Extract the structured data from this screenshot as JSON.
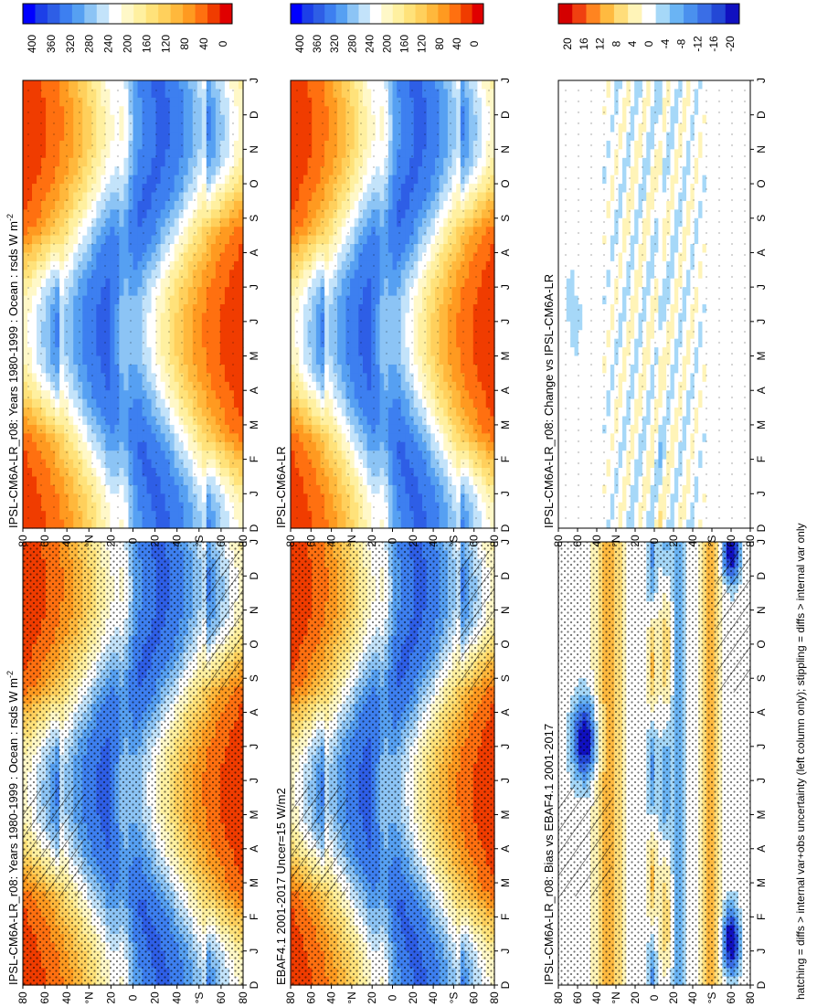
{
  "page": {
    "footer_note": "hatching = diffs > internal var+obs uncertainty (left column only); stippling = diffs > internal var only"
  },
  "chart_data": [
    {
      "type": "heatmap",
      "title": "IPSL-CM6A-LR_r08: Years 1980-1999 : Ocean : rsds W m",
      "title_superscript": "-2",
      "months": [
        "D",
        "J",
        "F",
        "M",
        "A",
        "M",
        "J",
        "J",
        "A",
        "S",
        "O",
        "N",
        "D",
        "J"
      ],
      "latitude_ticks": [
        "80",
        "60",
        "40",
        "°N",
        "20",
        "0",
        "20",
        "40",
        "°S",
        "60",
        "80"
      ],
      "colorbar": {
        "labels": [
          "400",
          "360",
          "320",
          "280",
          "240",
          "200",
          "160",
          "120",
          "80",
          "40",
          "0"
        ]
      },
      "fields": "absolute",
      "stippling": "dense",
      "hatching": true
    },
    {
      "type": "heatmap",
      "title": "IPSL-CM6A-LR_r08: Years 1980-1999 : Ocean : rsds W m",
      "title_superscript": "-2",
      "months": [
        "D",
        "J",
        "F",
        "M",
        "A",
        "M",
        "J",
        "J",
        "A",
        "S",
        "O",
        "N",
        "D",
        "J"
      ],
      "latitude_ticks": [
        "80",
        "60",
        "40",
        "°N",
        "20",
        "0",
        "20",
        "40",
        "°S",
        "60",
        "80"
      ],
      "colorbar": {
        "labels": [
          "400",
          "360",
          "320",
          "280",
          "240",
          "200",
          "160",
          "120",
          "80",
          "40",
          "0"
        ]
      },
      "fields": "absolute",
      "stippling": "sparse",
      "hatching": false
    },
    {
      "type": "heatmap",
      "title": "EBAF4.1 2001-2017 Uncer=15 W/m2",
      "months": [
        "D",
        "J",
        "F",
        "M",
        "A",
        "M",
        "J",
        "J",
        "A",
        "S",
        "O",
        "N",
        "D",
        "J"
      ],
      "latitude_ticks": [
        "80",
        "60",
        "40",
        "°N",
        "20",
        "0",
        "20",
        "40",
        "°S",
        "60",
        "80"
      ],
      "colorbar": {
        "labels": [
          "400",
          "360",
          "320",
          "280",
          "240",
          "200",
          "160",
          "120",
          "80",
          "40",
          "0"
        ]
      },
      "fields": "absolute",
      "stippling": "dense",
      "hatching": true
    },
    {
      "type": "heatmap",
      "title": "IPSL-CM6A-LR",
      "months": [
        "D",
        "J",
        "F",
        "M",
        "A",
        "M",
        "J",
        "J",
        "A",
        "S",
        "O",
        "N",
        "D",
        "J"
      ],
      "latitude_ticks": [
        "80",
        "60",
        "40",
        "°N",
        "20",
        "0",
        "20",
        "40",
        "°S",
        "60",
        "80"
      ],
      "colorbar": {
        "labels": [
          "400",
          "360",
          "320",
          "280",
          "240",
          "200",
          "160",
          "120",
          "80",
          "40",
          "0"
        ]
      },
      "fields": "absolute",
      "stippling": "sparse",
      "hatching": false
    },
    {
      "type": "heatmap",
      "title": "IPSL-CM6A-LR_r08: Bias vs EBAF4.1 2001-2017",
      "months": [
        "D",
        "J",
        "F",
        "M",
        "A",
        "M",
        "J",
        "J",
        "A",
        "S",
        "O",
        "N",
        "D",
        "J"
      ],
      "latitude_ticks": [
        "80",
        "60",
        "40",
        "°N",
        "20",
        "0",
        "20",
        "40",
        "°S",
        "60",
        "80"
      ],
      "colorbar": {
        "labels": [
          "20",
          "16",
          "12",
          "8",
          "4",
          "0",
          "-4",
          "-8",
          "-12",
          "-16",
          "-20"
        ]
      },
      "fields": "difference-bias",
      "stippling": "dense",
      "hatching": true
    },
    {
      "type": "heatmap",
      "title": "IPSL-CM6A-LR_r08: Change vs IPSL-CM6A-LR",
      "months": [
        "D",
        "J",
        "F",
        "M",
        "A",
        "M",
        "J",
        "J",
        "A",
        "S",
        "O",
        "N",
        "D",
        "J"
      ],
      "latitude_ticks": [
        "80",
        "60",
        "40",
        "°N",
        "20",
        "0",
        "20",
        "40",
        "°S",
        "60",
        "80"
      ],
      "colorbar": {
        "labels": [
          "20",
          "16",
          "12",
          "8",
          "4",
          "0",
          "-4",
          "-8",
          "-12",
          "-16",
          "-20"
        ]
      },
      "fields": "difference-change",
      "stippling": "sparse",
      "hatching": false
    }
  ],
  "colors": {
    "abs_scale": [
      "#0000ff",
      "#1c3fe8",
      "#2e5ee6",
      "#3d7ff0",
      "#56a0f2",
      "#8cc4f5",
      "#c3e3fa",
      "#ffffff",
      "#fff8c8",
      "#fff0a0",
      "#ffe27a",
      "#ffd05c",
      "#ffb83c",
      "#ff9a20",
      "#ff7010",
      "#f03c00",
      "#e00000"
    ],
    "diff_scale": [
      "#1010c0",
      "#2348d6",
      "#3a6ee6",
      "#4a90ee",
      "#6ab4f4",
      "#a6d8f8",
      "#ffffff",
      "#fff4b8",
      "#ffdd7a",
      "#ffba40",
      "#ff8420",
      "#f04010",
      "#d40000"
    ]
  }
}
